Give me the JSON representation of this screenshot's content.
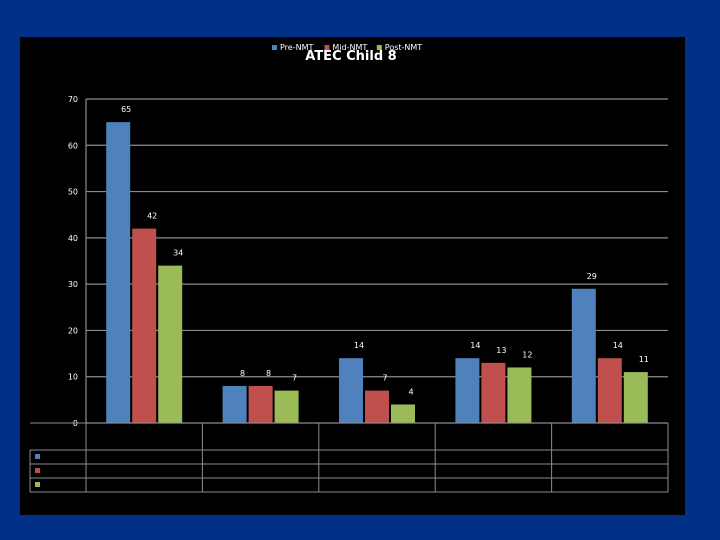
{
  "slide": {
    "background_color": "#003087",
    "panel_color": "#000000"
  },
  "chart_data": {
    "type": "bar",
    "title": "ATEC Child 8",
    "xlabel": "",
    "ylabel": "",
    "ylim": [
      0,
      70
    ],
    "yticks": [
      0,
      10,
      20,
      30,
      40,
      50,
      60,
      70
    ],
    "grid": true,
    "legend_position": "top",
    "categories": [
      "",
      "",
      "",
      "",
      ""
    ],
    "series": [
      {
        "name": "Pre-NMT",
        "color": "#4F81BD",
        "values": [
          65,
          8,
          14,
          14,
          29
        ]
      },
      {
        "name": "Mid-NMT",
        "color": "#C0504D",
        "values": [
          42,
          8,
          7,
          13,
          14
        ]
      },
      {
        "name": "Post-NMT",
        "color": "#9BBB59",
        "values": [
          34,
          7,
          4,
          12,
          11
        ]
      }
    ],
    "data_table": true
  }
}
